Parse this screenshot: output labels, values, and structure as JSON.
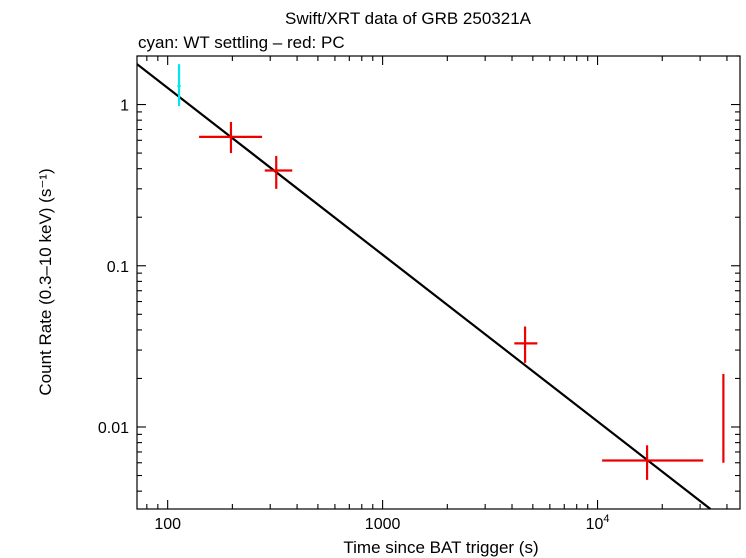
{
  "chart_data": {
    "type": "scatter",
    "title": "Swift/XRT data of GRB 250321A",
    "subtitle": "cyan: WT settling – red: PC",
    "xlabel": "Time since BAT trigger (s)",
    "ylabel": "Count Rate (0.3–10 keV) (s⁻¹)",
    "xscale": "log",
    "yscale": "log",
    "xlim": [
      72,
      46000
    ],
    "ylim": [
      0.0031,
      2.0
    ],
    "x_ticks": [
      {
        "value": 100,
        "label": "100"
      },
      {
        "value": 1000,
        "label": "1000"
      },
      {
        "value": 10000,
        "label": "10",
        "exp": "4"
      }
    ],
    "y_ticks": [
      {
        "value": 1,
        "label": "1"
      },
      {
        "value": 0.1,
        "label": "0.1"
      },
      {
        "value": 0.01,
        "label": "0.01"
      }
    ],
    "grid": false,
    "colors": {
      "wt": "#00e5ee",
      "pc": "#ee0000",
      "fit": "#000000"
    },
    "series": [
      {
        "name": "WT settling",
        "color": "#00e5ee",
        "points": [
          {
            "x": 113,
            "xlo": 111,
            "xhi": 115,
            "y": 1.3,
            "ylo": 0.98,
            "yhi": 1.78
          }
        ]
      },
      {
        "name": "PC",
        "color": "#ee0000",
        "points": [
          {
            "x": 197,
            "xlo": 140,
            "xhi": 275,
            "y": 0.63,
            "ylo": 0.5,
            "yhi": 0.78
          },
          {
            "x": 320,
            "xlo": 283,
            "xhi": 380,
            "y": 0.39,
            "ylo": 0.3,
            "yhi": 0.48
          },
          {
            "x": 4600,
            "xlo": 4100,
            "xhi": 5250,
            "y": 0.033,
            "ylo": 0.025,
            "yhi": 0.042
          },
          {
            "x": 17000,
            "xlo": 10500,
            "xhi": 31000,
            "y": 0.0062,
            "ylo": 0.0047,
            "yhi": 0.0077
          },
          {
            "x": 38500,
            "xlo": 38300,
            "xhi": 38700,
            "y": 0.0122,
            "ylo": 0.006,
            "yhi": 0.0213
          }
        ]
      }
    ],
    "fit": {
      "type": "power-law",
      "x": [
        72,
        33500
      ],
      "y": [
        1.78,
        0.0031
      ]
    }
  }
}
